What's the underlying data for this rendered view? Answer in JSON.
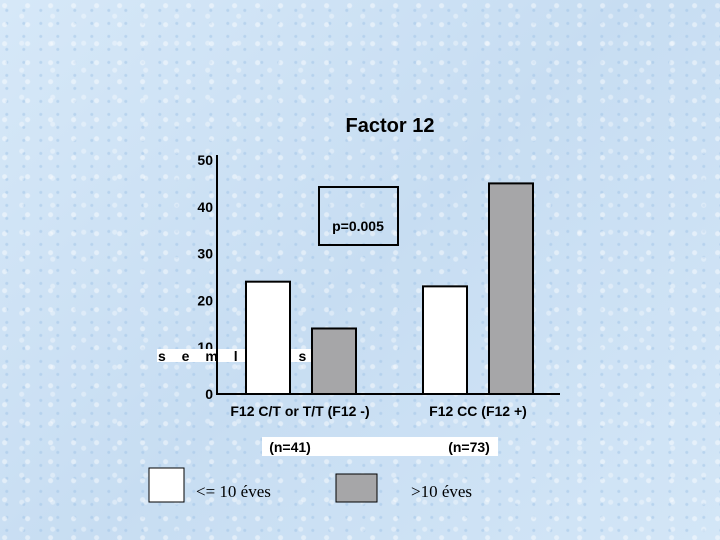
{
  "chart_data": {
    "type": "bar",
    "title": "Factor 12",
    "ylim": [
      0,
      50
    ],
    "yticks": [
      "0",
      "10",
      "20",
      "30",
      "40",
      "50"
    ],
    "ylabel_fragments": "s e m l n t s",
    "categories": [
      "F12 C/T or T/T (F12 -)",
      "F12 CC (F12 +)"
    ],
    "category_n": [
      "(n=41)",
      "(n=73)"
    ],
    "series": [
      {
        "name": "<= 10 éves",
        "color": "#ffffff",
        "values": [
          24,
          23
        ]
      },
      {
        "name": ">10 éves",
        "color": "#a6a6a8",
        "values": [
          14,
          45
        ]
      }
    ],
    "annotation": "p=0.005",
    "legend_position": "bottom",
    "grid": false
  }
}
